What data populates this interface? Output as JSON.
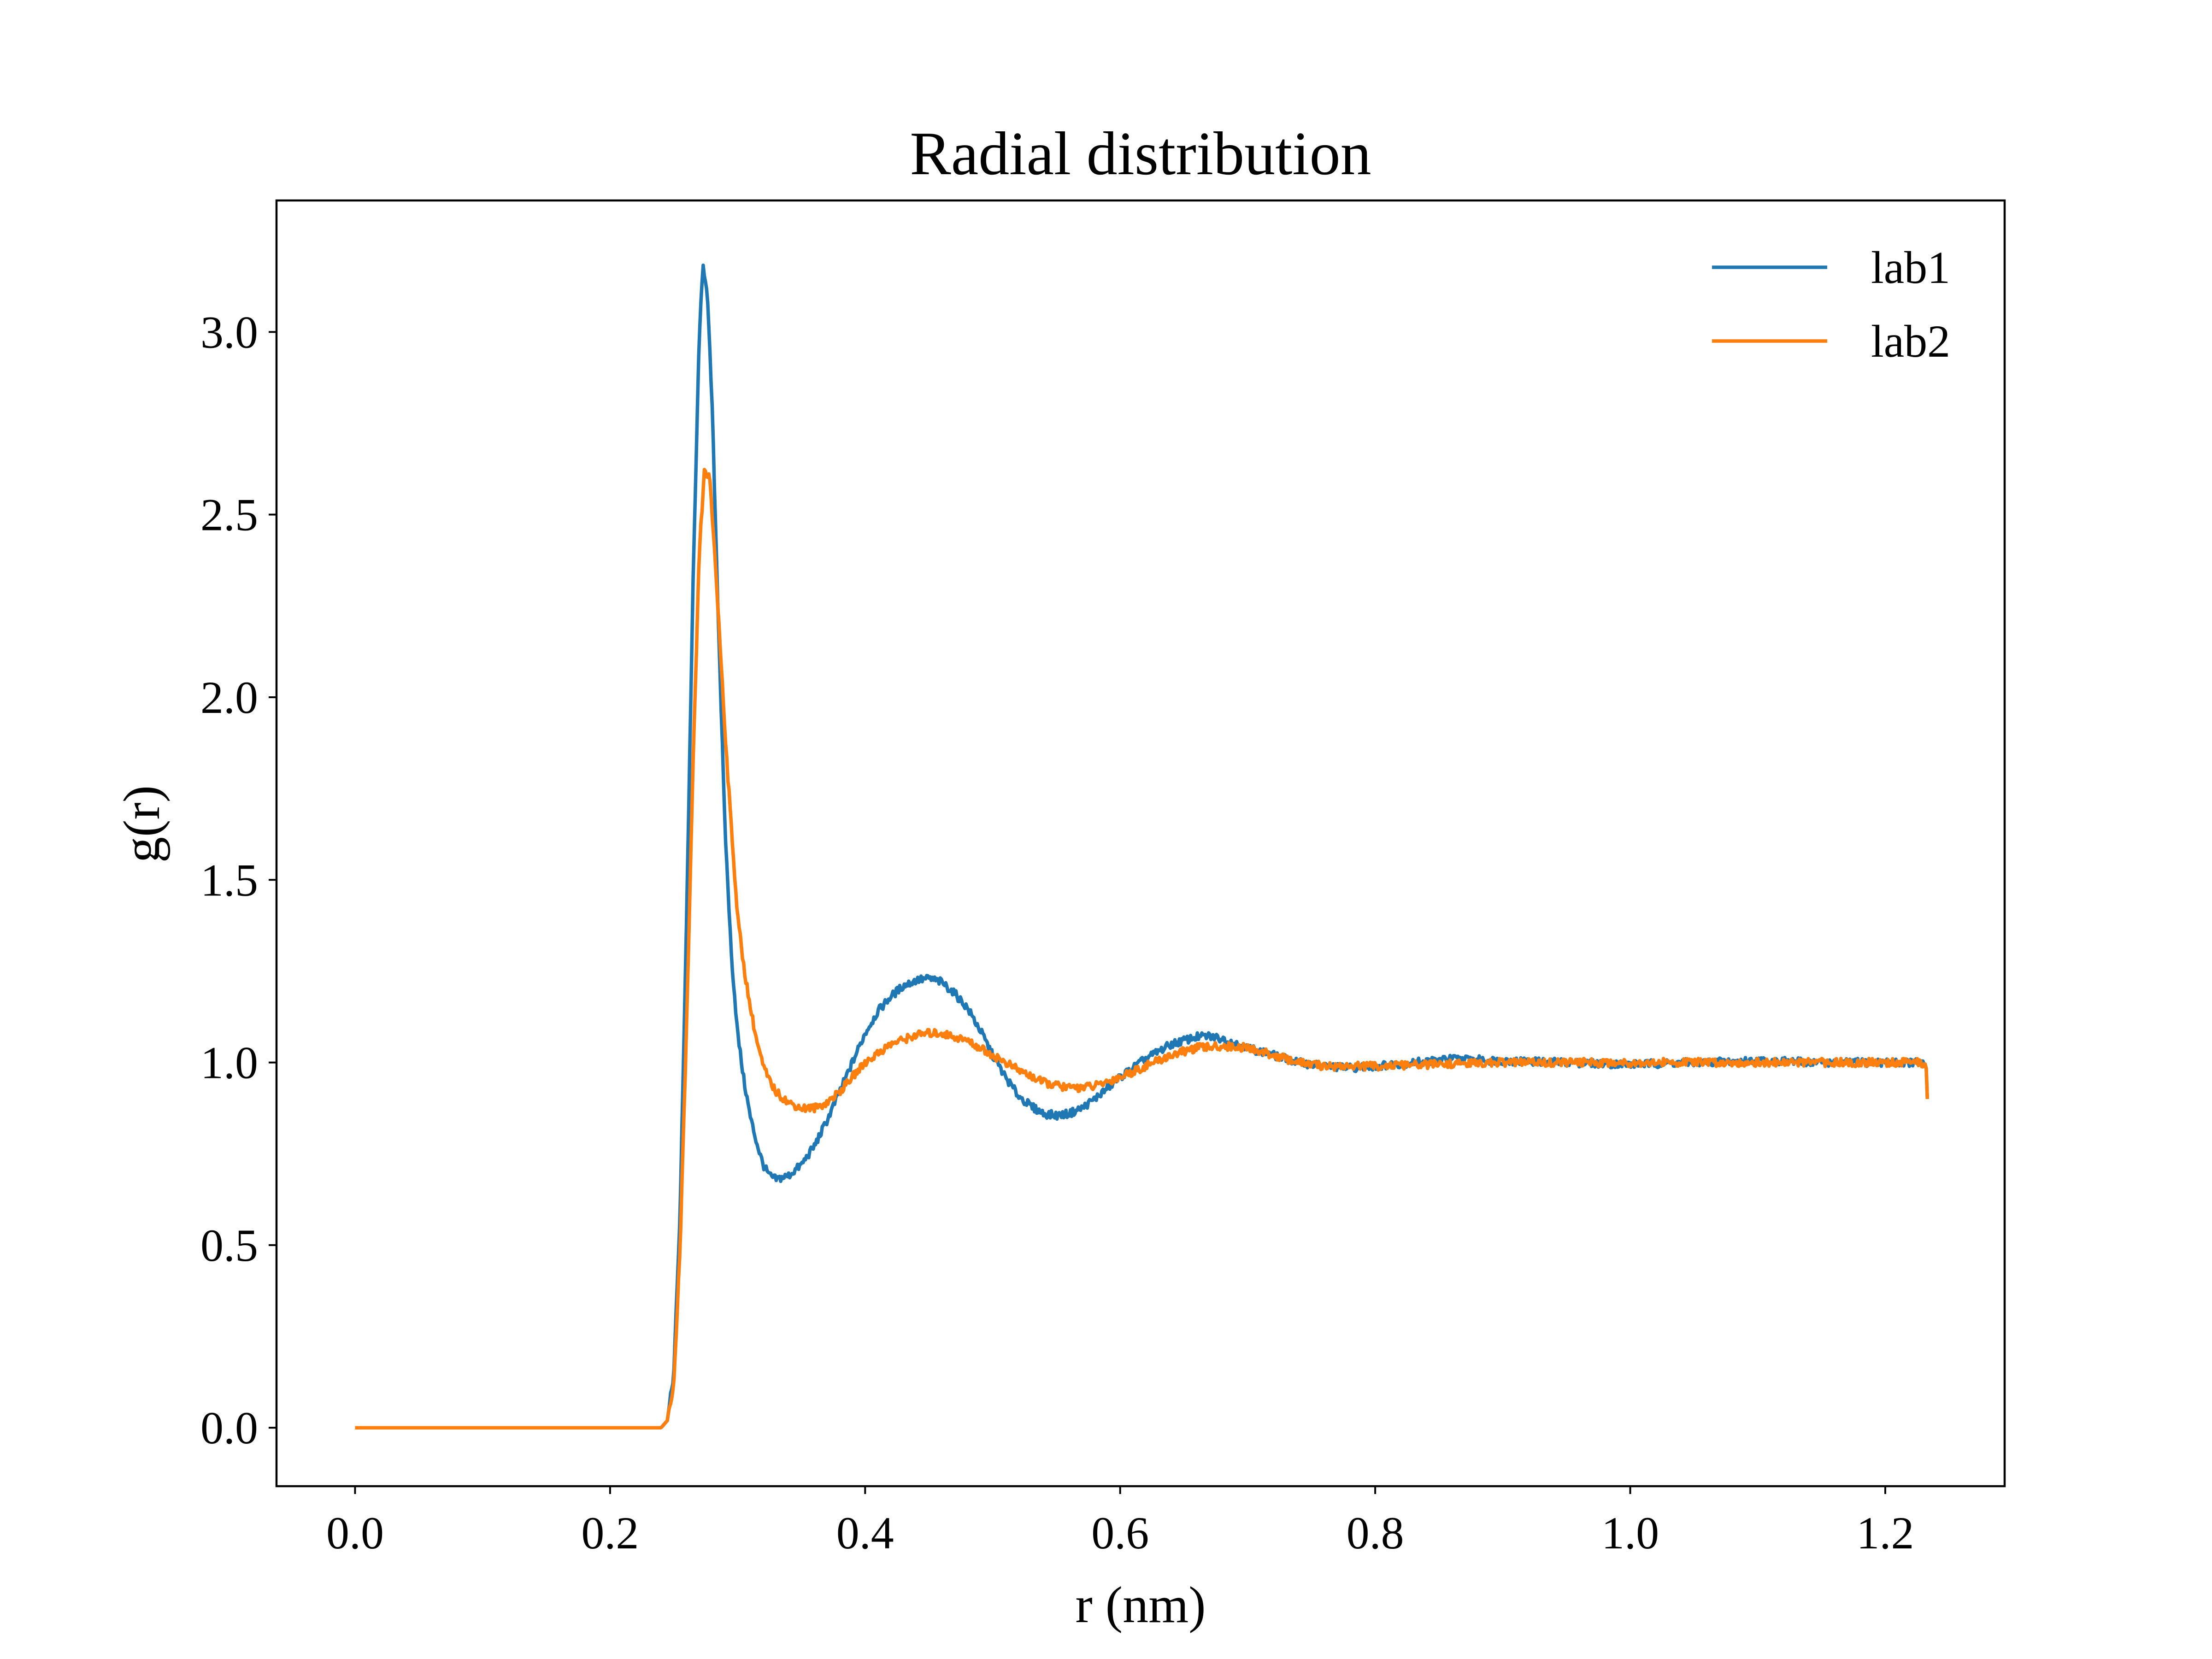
{
  "chart_data": {
    "type": "line",
    "title": "Radial distribution",
    "xlabel": "r (nm)",
    "ylabel": "g(r)",
    "xlim": [
      -0.0616,
      1.2936
    ],
    "ylim": [
      -0.16,
      3.36
    ],
    "xticks": [
      0.0,
      0.2,
      0.4,
      0.6,
      0.8,
      1.0,
      1.2
    ],
    "xtick_labels": [
      "0.0",
      "0.2",
      "0.4",
      "0.6",
      "0.8",
      "1.0",
      "1.2"
    ],
    "yticks": [
      0.0,
      0.5,
      1.0,
      1.5,
      2.0,
      2.5,
      3.0
    ],
    "ytick_labels": [
      "0.0",
      "0.5",
      "1.0",
      "1.5",
      "2.0",
      "2.5",
      "3.0"
    ],
    "grid": false,
    "legend_position": "top-right",
    "series": [
      {
        "name": "lab1",
        "color": "#1f77b4",
        "points": [
          [
            0.0,
            0.0
          ],
          [
            0.1,
            0.0
          ],
          [
            0.2,
            0.0
          ],
          [
            0.24,
            0.0
          ],
          [
            0.245,
            0.02
          ],
          [
            0.25,
            0.15
          ],
          [
            0.255,
            0.6
          ],
          [
            0.26,
            1.4
          ],
          [
            0.265,
            2.3
          ],
          [
            0.27,
            3.0
          ],
          [
            0.273,
            3.18
          ],
          [
            0.276,
            3.12
          ],
          [
            0.28,
            2.8
          ],
          [
            0.285,
            2.2
          ],
          [
            0.29,
            1.65
          ],
          [
            0.295,
            1.3
          ],
          [
            0.3,
            1.08
          ],
          [
            0.305,
            0.95
          ],
          [
            0.31,
            0.85
          ],
          [
            0.315,
            0.78
          ],
          [
            0.32,
            0.72
          ],
          [
            0.325,
            0.69
          ],
          [
            0.33,
            0.68
          ],
          [
            0.34,
            0.69
          ],
          [
            0.35,
            0.72
          ],
          [
            0.36,
            0.77
          ],
          [
            0.37,
            0.84
          ],
          [
            0.38,
            0.92
          ],
          [
            0.39,
            1.0
          ],
          [
            0.4,
            1.08
          ],
          [
            0.41,
            1.14
          ],
          [
            0.42,
            1.18
          ],
          [
            0.43,
            1.21
          ],
          [
            0.44,
            1.225
          ],
          [
            0.45,
            1.23
          ],
          [
            0.46,
            1.22
          ],
          [
            0.47,
            1.19
          ],
          [
            0.48,
            1.15
          ],
          [
            0.49,
            1.09
          ],
          [
            0.5,
            1.02
          ],
          [
            0.51,
            0.96
          ],
          [
            0.52,
            0.91
          ],
          [
            0.53,
            0.88
          ],
          [
            0.54,
            0.86
          ],
          [
            0.55,
            0.855
          ],
          [
            0.56,
            0.86
          ],
          [
            0.57,
            0.875
          ],
          [
            0.58,
            0.9
          ],
          [
            0.59,
            0.93
          ],
          [
            0.6,
            0.96
          ],
          [
            0.62,
            1.01
          ],
          [
            0.64,
            1.05
          ],
          [
            0.66,
            1.07
          ],
          [
            0.67,
            1.072
          ],
          [
            0.68,
            1.065
          ],
          [
            0.7,
            1.04
          ],
          [
            0.72,
            1.02
          ],
          [
            0.74,
            1.0
          ],
          [
            0.76,
            0.99
          ],
          [
            0.78,
            0.985
          ],
          [
            0.8,
            0.99
          ],
          [
            0.83,
            1.0
          ],
          [
            0.86,
            1.01
          ],
          [
            0.9,
            1.005
          ],
          [
            0.95,
            1.0
          ],
          [
            1.0,
            0.995
          ],
          [
            1.05,
            1.0
          ],
          [
            1.1,
            1.005
          ],
          [
            1.15,
            1.0
          ],
          [
            1.2,
            1.0
          ],
          [
            1.225,
            1.0
          ],
          [
            1.232,
            0.995
          ],
          [
            1.233,
            0.9
          ]
        ]
      },
      {
        "name": "lab2",
        "color": "#ff7f0e",
        "points": [
          [
            0.0,
            0.0
          ],
          [
            0.1,
            0.0
          ],
          [
            0.2,
            0.0
          ],
          [
            0.24,
            0.0
          ],
          [
            0.245,
            0.02
          ],
          [
            0.25,
            0.12
          ],
          [
            0.255,
            0.5
          ],
          [
            0.26,
            1.1
          ],
          [
            0.265,
            1.8
          ],
          [
            0.27,
            2.4
          ],
          [
            0.274,
            2.62
          ],
          [
            0.278,
            2.6
          ],
          [
            0.282,
            2.4
          ],
          [
            0.287,
            2.1
          ],
          [
            0.292,
            1.8
          ],
          [
            0.297,
            1.55
          ],
          [
            0.3,
            1.4
          ],
          [
            0.305,
            1.26
          ],
          [
            0.31,
            1.15
          ],
          [
            0.315,
            1.06
          ],
          [
            0.32,
            0.99
          ],
          [
            0.325,
            0.95
          ],
          [
            0.33,
            0.92
          ],
          [
            0.34,
            0.89
          ],
          [
            0.35,
            0.875
          ],
          [
            0.36,
            0.875
          ],
          [
            0.37,
            0.89
          ],
          [
            0.38,
            0.92
          ],
          [
            0.39,
            0.96
          ],
          [
            0.4,
            1.0
          ],
          [
            0.42,
            1.05
          ],
          [
            0.44,
            1.075
          ],
          [
            0.45,
            1.08
          ],
          [
            0.46,
            1.08
          ],
          [
            0.48,
            1.06
          ],
          [
            0.5,
            1.02
          ],
          [
            0.52,
            0.98
          ],
          [
            0.54,
            0.945
          ],
          [
            0.56,
            0.93
          ],
          [
            0.58,
            0.935
          ],
          [
            0.6,
            0.96
          ],
          [
            0.62,
            0.99
          ],
          [
            0.64,
            1.02
          ],
          [
            0.66,
            1.04
          ],
          [
            0.68,
            1.045
          ],
          [
            0.7,
            1.04
          ],
          [
            0.72,
            1.02
          ],
          [
            0.74,
            1.0
          ],
          [
            0.76,
            0.99
          ],
          [
            0.8,
            0.99
          ],
          [
            0.85,
            0.995
          ],
          [
            0.9,
            1.0
          ],
          [
            0.95,
            1.0
          ],
          [
            1.0,
            1.0
          ],
          [
            1.05,
            1.0
          ],
          [
            1.1,
            1.0
          ],
          [
            1.15,
            1.0
          ],
          [
            1.2,
            1.0
          ],
          [
            1.225,
            1.0
          ],
          [
            1.232,
            0.995
          ],
          [
            1.233,
            0.9
          ]
        ]
      }
    ]
  }
}
